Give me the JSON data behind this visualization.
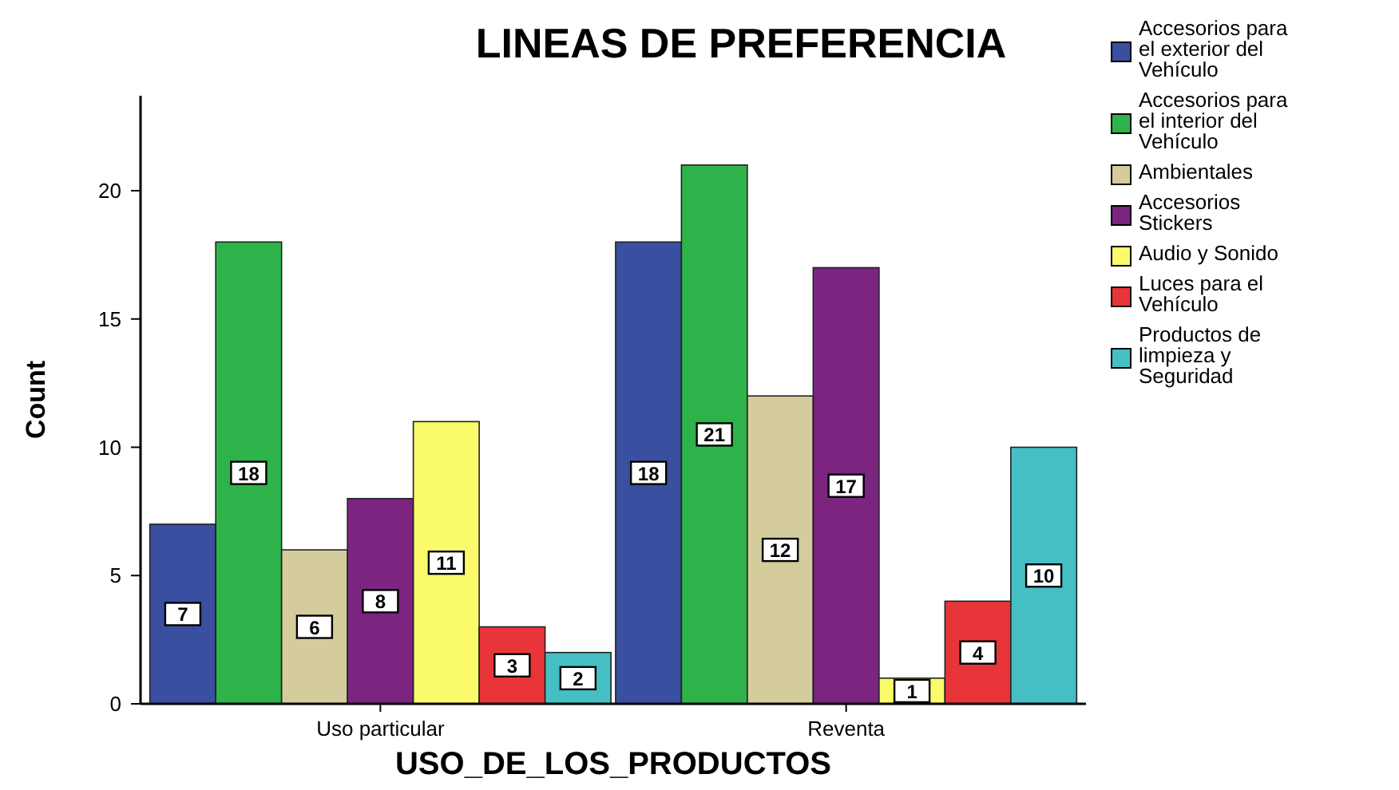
{
  "chart_data": {
    "type": "bar",
    "title": "LINEAS DE PREFERENCIA",
    "xlabel": "USO_DE_LOS_PRODUCTOS",
    "ylabel": "Count",
    "categories": [
      "Uso particular",
      "Reventa"
    ],
    "series": [
      {
        "name": "Accesorios para el exterior del Vehículo",
        "color": "#3a4fa0",
        "values": [
          7,
          18
        ]
      },
      {
        "name": "Accesorios para el interior del Vehículo",
        "color": "#2eb34a",
        "values": [
          18,
          21
        ]
      },
      {
        "name": "Ambientales",
        "color": "#d4cc9c",
        "values": [
          6,
          12
        ]
      },
      {
        "name": "Accesorios Stickers",
        "color": "#7b2480",
        "values": [
          8,
          17
        ]
      },
      {
        "name": "Audio y Sonido",
        "color": "#fafa6a",
        "values": [
          11,
          1
        ]
      },
      {
        "name": "Luces para el Vehículo",
        "color": "#e8353a",
        "values": [
          3,
          4
        ]
      },
      {
        "name": "Productos de limpieza y Seguridad",
        "color": "#45bfc4",
        "values": [
          2,
          10
        ]
      }
    ],
    "ylim": [
      0,
      23.7
    ],
    "yticks": [
      0,
      5,
      10,
      15,
      20
    ],
    "grid": false,
    "legend": "right",
    "data_labels": true
  }
}
